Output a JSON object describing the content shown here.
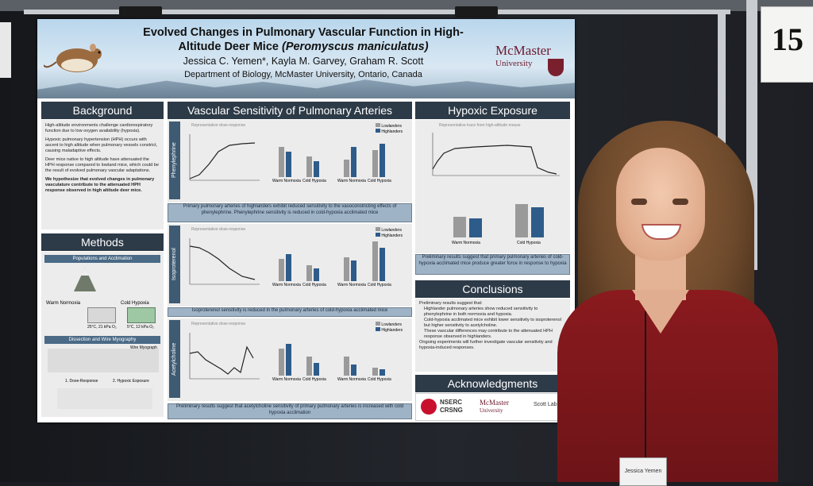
{
  "title_line1": "Evolved Changes in Pulmonary Vascular Function in High-",
  "title_line2": "Altitude Deer Mice",
  "title_species": "(Peromyscus maniculatus)",
  "authors": "Jessica C. Yemen*, Kayla M. Garvey, Graham R. Scott",
  "department": "Department of Biology, McMaster University, Ontario, Canada",
  "logo_mcmaster": "McMaster",
  "logo_university": "University",
  "board_number": "15",
  "sections": {
    "background": "Background",
    "methods": "Methods",
    "vascular": "Vascular Sensitivity of Pulmonary Arteries",
    "hypoxic": "Hypoxic Exposure",
    "conclusions": "Conclusions",
    "acknowledgments": "Acknowledgments"
  },
  "background_bullets": [
    "High-altitude environments challenge cardiorespiratory function due to low oxygen availability (hypoxia).",
    "Hypoxic pulmonary hypertension (HPH) occurs with ascent to high altitude when pulmonary vessels constrict, causing maladaptive effects.",
    "Deer mice native to high altitude have attenuated the HPH response compared to lowland mice, which could be the result of evolved pulmonary vascular adaptations.",
    "We hypothesize that evolved changes in pulmonary vasculature contribute to the attenuated HPH response observed in high altitude deer mice."
  ],
  "methods": {
    "pop_header": "Populations and Acclimation",
    "dissection_header": "Dissection and Wire Myography",
    "wire_myograph": "Wire Myograph",
    "warm_normoxia": "Warm Normoxia",
    "cold_hypoxia": "Cold Hypoxia",
    "warm_cond": "25°C, 21 kPa O₂",
    "cold_cond": "5°C, 12 kPa O₂",
    "step1": "1. Dose-Response",
    "step2": "2. Hypoxic Exposure"
  },
  "drugs": [
    "Phenylephrine",
    "Isoproterenol",
    "Acetylcholine"
  ],
  "legend": {
    "lowlanders": "Lowlanders",
    "highlanders": "Highlanders"
  },
  "rep_dose": "Representative dose-response",
  "rep_trace": "Representative trace from high-altitude mouse",
  "captions": {
    "phenyl": "Primary pulmonary arteries of highlanders exhibit reduced sensitivity to the vasoconstricting effects of phenylephrine. Phenylephrine sensitivity is reduced in cold-hypoxia acclimated mice",
    "iso": "Isoproterenol sensitivity is reduced in the pulmonary arteries of cold-hypoxia acclimated mice",
    "ach": "Preliminary results suggest that acetylcholine sensitivity of primary pulmonary arteries is increased with cold hypoxia acclimation",
    "hypoxic": "Preliminary results suggest that primary pulmonary arteries of cold-hypoxia acclimated mice produce greater force in response to hypoxia"
  },
  "conclusions": {
    "intro": "Preliminary results suggest that:",
    "bullets": [
      "Highlander pulmonary arteries show reduced sensitivity to phenylephrine in both normoxia and hypoxia.",
      "Cold-hypoxia acclimated mice exhibit lower sensitivity to isoproterenol but higher sensitivity to acetylcholine.",
      "These vascular differences may contribute to the attenuated HPH response observed in highlanders."
    ],
    "outro": "Ongoing experiments will further investigate vascular sensitivity and hypoxia-induced responses."
  },
  "ack": {
    "nserc": "NSERC",
    "crsng": "CRSNG",
    "scott": "Scott Lab"
  },
  "badge": "Jessica Yemen",
  "colors": {
    "header": "#2d3a47",
    "highlander": "#2e5c8a",
    "lowlander": "#9a9a9a",
    "sweater": "#8a1a1e"
  }
}
